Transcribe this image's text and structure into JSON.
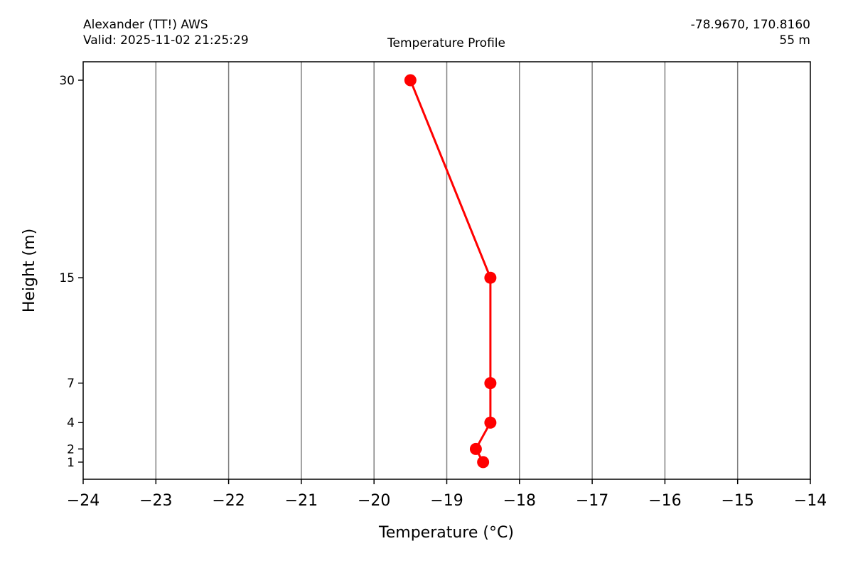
{
  "header": {
    "station": "Alexander (TT!) AWS",
    "valid": "Valid: 2025-11-02 21:25:29",
    "coords": "-78.9670, 170.8160",
    "elevation": "55 m",
    "title": "Temperature Profile"
  },
  "chart_data": {
    "type": "line",
    "xlabel": "Temperature (°C)",
    "ylabel": "Height (m)",
    "xlim": [
      -24,
      -14
    ],
    "ylim": [
      -0.3,
      31.4
    ],
    "x_ticks": [
      -24,
      -23,
      -22,
      -21,
      -20,
      -19,
      -18,
      -17,
      -16,
      -15,
      -14
    ],
    "x_tick_labels": [
      "−24",
      "−23",
      "−22",
      "−21",
      "−20",
      "−19",
      "−18",
      "−17",
      "−16",
      "−15",
      "−14"
    ],
    "y_ticks": [
      1,
      2,
      4,
      7,
      15,
      30
    ],
    "y_tick_labels": [
      "1",
      "2",
      "4",
      "7",
      "15",
      "30"
    ],
    "grid": "vertical",
    "series": [
      {
        "color": "#ff0000",
        "marker": "circle",
        "points": [
          {
            "height": 1,
            "temp": -18.5
          },
          {
            "height": 2,
            "temp": -18.6
          },
          {
            "height": 4,
            "temp": -18.4
          },
          {
            "height": 7,
            "temp": -18.4
          },
          {
            "height": 15,
            "temp": -18.4
          },
          {
            "height": 30,
            "temp": -19.5
          }
        ]
      }
    ]
  }
}
